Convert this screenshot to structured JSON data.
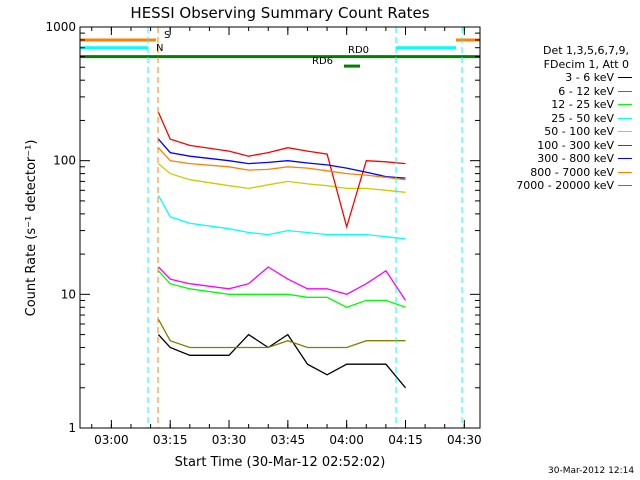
{
  "chart_data": {
    "type": "line",
    "title": "HESSI Observing Summary Count Rates",
    "xlabel": "Start Time (30-Mar-12 02:52:02)",
    "ylabel": "Count Rate (s⁻¹ detector⁻¹)",
    "y_scale": "log",
    "ylim": [
      1,
      1000
    ],
    "xlim": [
      "02:52",
      "04:34"
    ],
    "x_ticks": [
      "03:00",
      "03:15",
      "03:30",
      "03:45",
      "04:00",
      "04:15",
      "04:30"
    ],
    "y_ticks": [
      "1",
      "10",
      "100",
      "1000"
    ],
    "x": [
      "03:10",
      "03:12",
      "03:15",
      "03:20",
      "03:30",
      "03:35",
      "03:40",
      "03:45",
      "03:50",
      "03:55",
      "04:00",
      "04:05",
      "04:10",
      "04:15"
    ],
    "series": [
      {
        "name": "3 - 6 keV",
        "color": "#000000",
        "values": [
          null,
          5,
          4,
          3.5,
          3.5,
          5,
          4,
          5,
          3,
          2.5,
          3,
          3,
          3,
          2
        ]
      },
      {
        "name": "6 - 12 keV",
        "color": "#ff00ff",
        "values": [
          null,
          16,
          13,
          12,
          11,
          12,
          16,
          13,
          11,
          11,
          10,
          12,
          15,
          9
        ]
      },
      {
        "name": "12 - 25 keV",
        "color": "#00ff00",
        "values": [
          null,
          15,
          12,
          11,
          10,
          10,
          10,
          10,
          9.5,
          9.5,
          8,
          9,
          9,
          8
        ]
      },
      {
        "name": "25 - 50 keV",
        "color": "#00ffff",
        "values": [
          null,
          55,
          38,
          34,
          31,
          29,
          28,
          30,
          29,
          28,
          28,
          28,
          27,
          26
        ]
      },
      {
        "name": "50 - 100 keV",
        "color": "#cccc00",
        "values": [
          null,
          95,
          80,
          72,
          65,
          62,
          66,
          70,
          67,
          65,
          62,
          62,
          60,
          58
        ]
      },
      {
        "name": "100 - 300 keV",
        "color": "#ff0000",
        "values": [
          null,
          230,
          145,
          130,
          118,
          108,
          115,
          125,
          118,
          112,
          32,
          100,
          98,
          95
        ]
      },
      {
        "name": "300 - 800 keV",
        "color": "#0000ff",
        "values": [
          null,
          145,
          115,
          108,
          100,
          95,
          97,
          100,
          96,
          93,
          88,
          82,
          76,
          74
        ]
      },
      {
        "name": "800 - 7000 keV",
        "color": "#ff8000",
        "values": [
          null,
          125,
          100,
          95,
          90,
          85,
          86,
          90,
          88,
          84,
          80,
          78,
          75,
          72
        ]
      },
      {
        "name": "7000 - 20000 keV",
        "color": "#808000",
        "values": [
          null,
          6.5,
          4.5,
          4,
          4,
          4,
          4,
          4.5,
          4,
          4,
          4,
          4.5,
          4.5,
          4.5
        ]
      }
    ],
    "annotations": [
      {
        "text": "S",
        "color": "#ff8000"
      },
      {
        "text": "N",
        "color": "#00ffff"
      },
      {
        "text": "RD0",
        "color": "#008000"
      },
      {
        "text": "RD6",
        "color": "#008000"
      }
    ],
    "legend": {
      "header_lines": [
        "Det 1,3,5,6,7,9,",
        "FDecim 1, Att 0"
      ],
      "placement": "right"
    }
  },
  "timestamp": "30-Mar-2012 12:14"
}
